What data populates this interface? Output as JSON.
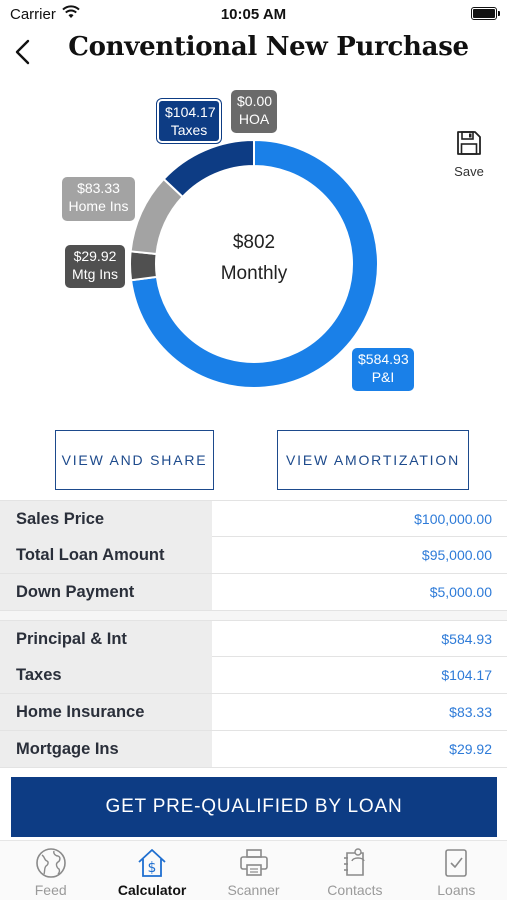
{
  "status_bar": {
    "carrier": "Carrier",
    "time": "10:05 AM"
  },
  "header": {
    "title": "Conventional New Purchase"
  },
  "chart_data": {
    "type": "pie",
    "center_amount": "$802",
    "center_label": "Monthly",
    "slices": [
      {
        "label": "P&I",
        "display": "$584.93",
        "value": 584.93,
        "color": "#1a80e8"
      },
      {
        "label": "Mtg Ins",
        "display": "$29.92",
        "value": 29.92,
        "color": "#505050"
      },
      {
        "label": "Home Ins",
        "display": "$83.33",
        "value": 83.33,
        "color": "#a3a3a3"
      },
      {
        "label": "Taxes",
        "display": "$104.17",
        "value": 104.17,
        "color": "#0d3c84"
      },
      {
        "label": "HOA",
        "display": "$0.00",
        "value": 0,
        "color": "#6a6a6a"
      }
    ]
  },
  "save": {
    "label": "Save"
  },
  "actions": {
    "view_share": "VIEW AND SHARE",
    "view_amortization": "VIEW AMORTIZATION"
  },
  "loan_rows": [
    {
      "label": "Sales Price",
      "value": "$100,000.00"
    },
    {
      "label": "Total Loan Amount",
      "value": "$95,000.00"
    },
    {
      "label": "Down Payment",
      "value": "$5,000.00"
    }
  ],
  "payment_rows": [
    {
      "label": "Principal & Int",
      "value": "$584.93"
    },
    {
      "label": "Taxes",
      "value": "$104.17"
    },
    {
      "label": "Home Insurance",
      "value": "$83.33"
    },
    {
      "label": "Mortgage Ins",
      "value": "$29.92"
    }
  ],
  "cta": {
    "label": "GET PRE-QUALIFIED BY LOAN"
  },
  "tabs": [
    {
      "label": "Feed",
      "icon": "globe-icon"
    },
    {
      "label": "Calculator",
      "icon": "house-dollar-icon",
      "active": true
    },
    {
      "label": "Scanner",
      "icon": "printer-icon"
    },
    {
      "label": "Contacts",
      "icon": "contacts-icon"
    },
    {
      "label": "Loans",
      "icon": "document-check-icon"
    }
  ]
}
